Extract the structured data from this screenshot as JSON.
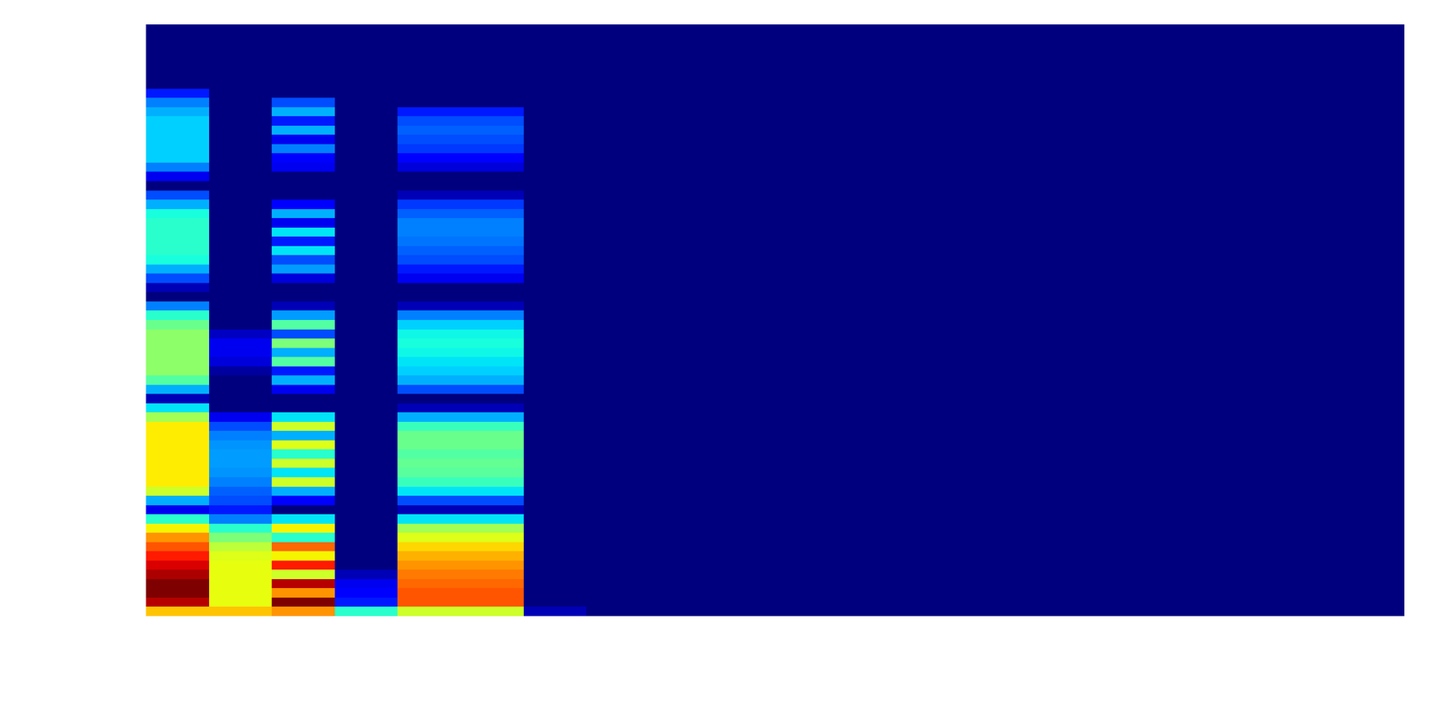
{
  "chart_data": {
    "type": "heatmap",
    "tick_labels": false,
    "clim": [
      0,
      1
    ],
    "cells": [
      [
        0,
        0,
        0,
        0,
        0,
        0,
        0,
        0,
        0,
        0,
        0,
        0,
        0,
        0,
        0,
        0,
        0,
        0,
        0,
        0
      ],
      [
        0,
        0,
        0,
        0,
        0,
        0,
        0,
        0,
        0,
        0,
        0,
        0,
        0,
        0,
        0,
        0,
        0,
        0,
        0,
        0
      ],
      [
        0,
        0,
        0,
        0,
        0,
        0,
        0,
        0,
        0,
        0,
        0,
        0,
        0,
        0,
        0,
        0,
        0,
        0,
        0,
        0
      ],
      [
        0,
        0,
        0,
        0,
        0,
        0,
        0,
        0,
        0,
        0,
        0,
        0,
        0,
        0,
        0,
        0,
        0,
        0,
        0,
        0
      ],
      [
        0,
        0,
        0,
        0,
        0,
        0,
        0,
        0,
        0,
        0,
        0,
        0,
        0,
        0,
        0,
        0,
        0,
        0,
        0,
        0
      ],
      [
        0,
        0,
        0,
        0,
        0,
        0,
        0,
        0,
        0,
        0,
        0,
        0,
        0,
        0,
        0,
        0,
        0,
        0,
        0,
        0
      ],
      [
        0,
        0,
        0,
        0,
        0,
        0,
        0,
        0,
        0,
        0,
        0,
        0,
        0,
        0,
        0,
        0,
        0,
        0,
        0,
        0
      ],
      [
        0.15,
        0,
        0,
        0,
        0,
        0,
        0,
        0,
        0,
        0,
        0,
        0,
        0,
        0,
        0,
        0,
        0,
        0,
        0,
        0
      ],
      [
        0.25,
        0,
        0.2,
        0,
        0,
        0,
        0,
        0,
        0,
        0,
        0,
        0,
        0,
        0,
        0,
        0,
        0,
        0,
        0,
        0
      ],
      [
        0.3,
        0,
        0.3,
        0,
        0.15,
        0.15,
        0,
        0,
        0,
        0,
        0,
        0,
        0,
        0,
        0,
        0,
        0,
        0,
        0,
        0
      ],
      [
        0.33,
        0,
        0.15,
        0,
        0.2,
        0.2,
        0,
        0,
        0,
        0,
        0,
        0,
        0,
        0,
        0,
        0,
        0,
        0,
        0,
        0
      ],
      [
        0.33,
        0,
        0.3,
        0,
        0.22,
        0.22,
        0,
        0,
        0,
        0,
        0,
        0,
        0,
        0,
        0,
        0,
        0,
        0,
        0,
        0
      ],
      [
        0.33,
        0,
        0.1,
        0,
        0.2,
        0.2,
        0,
        0,
        0,
        0,
        0,
        0,
        0,
        0,
        0,
        0,
        0,
        0,
        0,
        0
      ],
      [
        0.33,
        0,
        0.25,
        0,
        0.18,
        0.18,
        0,
        0,
        0,
        0,
        0,
        0,
        0,
        0,
        0,
        0,
        0,
        0,
        0,
        0
      ],
      [
        0.33,
        0,
        0.12,
        0,
        0.12,
        0.12,
        0,
        0,
        0,
        0,
        0,
        0,
        0,
        0,
        0,
        0,
        0,
        0,
        0,
        0
      ],
      [
        0.25,
        0,
        0.1,
        0,
        0.08,
        0.08,
        0,
        0,
        0,
        0,
        0,
        0,
        0,
        0,
        0,
        0,
        0,
        0,
        0,
        0
      ],
      [
        0.1,
        0,
        0,
        0,
        0,
        0,
        0,
        0,
        0,
        0,
        0,
        0,
        0,
        0,
        0,
        0,
        0,
        0,
        0,
        0
      ],
      [
        0,
        0,
        0,
        0,
        0,
        0,
        0,
        0,
        0,
        0,
        0,
        0,
        0,
        0,
        0,
        0,
        0,
        0,
        0,
        0
      ],
      [
        0.2,
        0,
        0,
        0,
        0.05,
        0.05,
        0,
        0,
        0,
        0,
        0,
        0,
        0,
        0,
        0,
        0,
        0,
        0,
        0,
        0
      ],
      [
        0.3,
        0,
        0.12,
        0,
        0.18,
        0.18,
        0,
        0,
        0,
        0,
        0,
        0,
        0,
        0,
        0,
        0,
        0,
        0,
        0,
        0
      ],
      [
        0.38,
        0,
        0.3,
        0,
        0.22,
        0.22,
        0,
        0,
        0,
        0,
        0,
        0,
        0,
        0,
        0,
        0,
        0,
        0,
        0,
        0
      ],
      [
        0.4,
        0,
        0.1,
        0,
        0.25,
        0.25,
        0,
        0,
        0,
        0,
        0,
        0,
        0,
        0,
        0,
        0,
        0,
        0,
        0,
        0
      ],
      [
        0.4,
        0,
        0.35,
        0,
        0.25,
        0.25,
        0,
        0,
        0,
        0,
        0,
        0,
        0,
        0,
        0,
        0,
        0,
        0,
        0,
        0
      ],
      [
        0.4,
        0,
        0.15,
        0,
        0.24,
        0.24,
        0,
        0,
        0,
        0,
        0,
        0,
        0,
        0,
        0,
        0,
        0,
        0,
        0,
        0
      ],
      [
        0.4,
        0,
        0.35,
        0,
        0.22,
        0.22,
        0,
        0,
        0,
        0,
        0,
        0,
        0,
        0,
        0,
        0,
        0,
        0,
        0,
        0
      ],
      [
        0.38,
        0,
        0.2,
        0,
        0.2,
        0.2,
        0,
        0,
        0,
        0,
        0,
        0,
        0,
        0,
        0,
        0,
        0,
        0,
        0,
        0
      ],
      [
        0.3,
        0,
        0.28,
        0,
        0.15,
        0.15,
        0,
        0,
        0,
        0,
        0,
        0,
        0,
        0,
        0,
        0,
        0,
        0,
        0,
        0
      ],
      [
        0.2,
        0,
        0.08,
        0,
        0.1,
        0.1,
        0,
        0,
        0,
        0,
        0,
        0,
        0,
        0,
        0,
        0,
        0,
        0,
        0,
        0
      ],
      [
        0.05,
        0,
        0,
        0,
        0,
        0,
        0,
        0,
        0,
        0,
        0,
        0,
        0,
        0,
        0,
        0,
        0,
        0,
        0,
        0
      ],
      [
        0,
        0,
        0,
        0,
        0,
        0,
        0,
        0,
        0,
        0,
        0,
        0,
        0,
        0,
        0,
        0,
        0,
        0,
        0,
        0
      ],
      [
        0.25,
        0,
        0.05,
        0,
        0.05,
        0.05,
        0,
        0,
        0,
        0,
        0,
        0,
        0,
        0,
        0,
        0,
        0,
        0,
        0,
        0
      ],
      [
        0.4,
        0,
        0.28,
        0,
        0.25,
        0.25,
        0,
        0,
        0,
        0,
        0,
        0,
        0,
        0,
        0,
        0,
        0,
        0,
        0,
        0
      ],
      [
        0.48,
        0,
        0.45,
        0,
        0.33,
        0.33,
        0,
        0,
        0,
        0,
        0,
        0,
        0,
        0,
        0,
        0,
        0,
        0,
        0,
        0
      ],
      [
        0.52,
        0.06,
        0.2,
        0,
        0.37,
        0.37,
        0,
        0,
        0,
        0,
        0,
        0,
        0,
        0,
        0,
        0,
        0,
        0,
        0,
        0
      ],
      [
        0.52,
        0.1,
        0.5,
        0,
        0.38,
        0.38,
        0,
        0,
        0,
        0,
        0,
        0,
        0,
        0,
        0,
        0,
        0,
        0,
        0,
        0
      ],
      [
        0.52,
        0.1,
        0.3,
        0,
        0.37,
        0.37,
        0,
        0,
        0,
        0,
        0,
        0,
        0,
        0,
        0,
        0,
        0,
        0,
        0,
        0
      ],
      [
        0.52,
        0.08,
        0.45,
        0,
        0.35,
        0.35,
        0,
        0,
        0,
        0,
        0,
        0,
        0,
        0,
        0,
        0,
        0,
        0,
        0,
        0
      ],
      [
        0.52,
        0.03,
        0.15,
        0,
        0.33,
        0.33,
        0,
        0,
        0,
        0,
        0,
        0,
        0,
        0,
        0,
        0,
        0,
        0,
        0,
        0
      ],
      [
        0.45,
        0,
        0.3,
        0,
        0.3,
        0.3,
        0,
        0,
        0,
        0,
        0,
        0,
        0,
        0,
        0,
        0,
        0,
        0,
        0,
        0
      ],
      [
        0.3,
        0,
        0.1,
        0,
        0.2,
        0.2,
        0,
        0,
        0,
        0,
        0,
        0,
        0,
        0,
        0,
        0,
        0,
        0,
        0,
        0
      ],
      [
        0.05,
        0,
        0,
        0,
        0,
        0,
        0,
        0,
        0,
        0,
        0,
        0,
        0,
        0,
        0,
        0,
        0,
        0,
        0,
        0
      ],
      [
        0.35,
        0,
        0,
        0,
        0.05,
        0.05,
        0,
        0,
        0,
        0,
        0,
        0,
        0,
        0,
        0,
        0,
        0,
        0,
        0,
        0
      ],
      [
        0.55,
        0.1,
        0.35,
        0,
        0.3,
        0.3,
        0,
        0,
        0,
        0,
        0,
        0,
        0,
        0,
        0,
        0,
        0,
        0,
        0,
        0
      ],
      [
        0.66,
        0.2,
        0.6,
        0,
        0.42,
        0.42,
        0,
        0,
        0,
        0,
        0,
        0,
        0,
        0,
        0,
        0,
        0,
        0,
        0,
        0
      ],
      [
        0.66,
        0.25,
        0.3,
        0,
        0.48,
        0.48,
        0,
        0,
        0,
        0,
        0,
        0,
        0,
        0,
        0,
        0,
        0,
        0,
        0,
        0
      ],
      [
        0.66,
        0.27,
        0.62,
        0,
        0.48,
        0.48,
        0,
        0,
        0,
        0,
        0,
        0,
        0,
        0,
        0,
        0,
        0,
        0,
        0,
        0
      ],
      [
        0.66,
        0.28,
        0.4,
        0,
        0.45,
        0.45,
        0,
        0,
        0,
        0,
        0,
        0,
        0,
        0,
        0,
        0,
        0,
        0,
        0,
        0
      ],
      [
        0.66,
        0.28,
        0.6,
        0,
        0.47,
        0.47,
        0,
        0,
        0,
        0,
        0,
        0,
        0,
        0,
        0,
        0,
        0,
        0,
        0,
        0
      ],
      [
        0.66,
        0.27,
        0.35,
        0,
        0.46,
        0.46,
        0,
        0,
        0,
        0,
        0,
        0,
        0,
        0,
        0,
        0,
        0,
        0,
        0,
        0
      ],
      [
        0.66,
        0.25,
        0.6,
        0,
        0.42,
        0.42,
        0,
        0,
        0,
        0,
        0,
        0,
        0,
        0,
        0,
        0,
        0,
        0,
        0,
        0
      ],
      [
        0.6,
        0.22,
        0.3,
        0,
        0.35,
        0.35,
        0,
        0,
        0,
        0,
        0,
        0,
        0,
        0,
        0,
        0,
        0,
        0,
        0,
        0
      ],
      [
        0.3,
        0.2,
        0.12,
        0,
        0.2,
        0.2,
        0,
        0,
        0,
        0,
        0,
        0,
        0,
        0,
        0,
        0,
        0,
        0,
        0,
        0
      ],
      [
        0.1,
        0.15,
        0,
        0,
        0.05,
        0.05,
        0,
        0,
        0,
        0,
        0,
        0,
        0,
        0,
        0,
        0,
        0,
        0,
        0,
        0
      ],
      [
        0.4,
        0.25,
        0.35,
        0,
        0.35,
        0.35,
        0,
        0,
        0,
        0,
        0,
        0,
        0,
        0,
        0,
        0,
        0,
        0,
        0,
        0
      ],
      [
        0.65,
        0.4,
        0.65,
        0,
        0.55,
        0.55,
        0,
        0,
        0,
        0,
        0,
        0,
        0,
        0,
        0,
        0,
        0,
        0,
        0,
        0
      ],
      [
        0.75,
        0.5,
        0.4,
        0,
        0.62,
        0.62,
        0,
        0,
        0,
        0,
        0,
        0,
        0,
        0,
        0,
        0,
        0,
        0,
        0,
        0
      ],
      [
        0.82,
        0.58,
        0.8,
        0,
        0.68,
        0.68,
        0,
        0,
        0,
        0,
        0,
        0,
        0,
        0,
        0,
        0,
        0,
        0,
        0,
        0
      ],
      [
        0.88,
        0.62,
        0.65,
        0,
        0.72,
        0.72,
        0,
        0,
        0,
        0,
        0,
        0,
        0,
        0,
        0,
        0,
        0,
        0,
        0,
        0
      ],
      [
        0.92,
        0.63,
        0.88,
        0,
        0.75,
        0.75,
        0,
        0,
        0,
        0,
        0,
        0,
        0,
        0,
        0,
        0,
        0,
        0,
        0,
        0
      ],
      [
        0.96,
        0.63,
        0.6,
        0.05,
        0.78,
        0.78,
        0,
        0,
        0,
        0,
        0,
        0,
        0,
        0,
        0,
        0,
        0,
        0,
        0,
        0
      ],
      [
        1.0,
        0.63,
        0.95,
        0.1,
        0.8,
        0.8,
        0,
        0,
        0,
        0,
        0,
        0,
        0,
        0,
        0,
        0,
        0,
        0,
        0,
        0
      ],
      [
        1.0,
        0.63,
        0.75,
        0.12,
        0.82,
        0.82,
        0,
        0,
        0,
        0,
        0,
        0,
        0,
        0,
        0,
        0,
        0,
        0,
        0,
        0
      ],
      [
        0.95,
        0.63,
        1.0,
        0.15,
        0.82,
        0.82,
        0,
        0,
        0,
        0,
        0,
        0,
        0,
        0,
        0,
        0,
        0,
        0,
        0,
        0
      ],
      [
        0.7,
        0.7,
        0.75,
        0.4,
        0.6,
        0.6,
        0.05,
        0,
        0,
        0,
        0,
        0,
        0,
        0,
        0,
        0,
        0,
        0,
        0,
        0
      ]
    ]
  }
}
